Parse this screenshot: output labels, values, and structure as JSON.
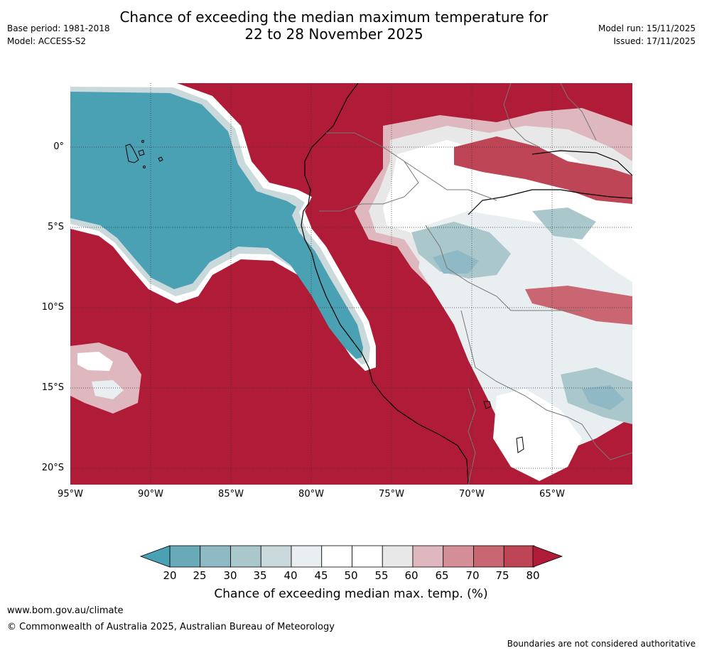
{
  "title": {
    "line1": "Chance of exceeding the median maximum temperature for",
    "line2": "22 to 28 November 2025"
  },
  "meta": {
    "base_period": "Base period: 1981-2018",
    "model": "Model: ACCESS-S2",
    "model_run": "Model run: 15/11/2025",
    "issued": "Issued: 17/11/2025"
  },
  "map": {
    "lat_labels": [
      "0°",
      "5°S",
      "10°S",
      "15°S",
      "20°S"
    ],
    "lon_labels": [
      "95°W",
      "90°W",
      "85°W",
      "80°W",
      "75°W",
      "70°W",
      "65°W"
    ]
  },
  "colorbar": {
    "ticks": [
      "20",
      "25",
      "30",
      "35",
      "40",
      "45",
      "50",
      "55",
      "60",
      "65",
      "70",
      "75",
      "80"
    ],
    "colors": [
      "#4aa1b3",
      "#6aa9b7",
      "#8fb9c5",
      "#aac7cc",
      "#cad9db",
      "#e9eff1",
      "#ffffff",
      "#ffffff",
      "#e8e8e8",
      "#dfb8bf",
      "#d48e95",
      "#c96671",
      "#be4556",
      "#b01c37"
    ],
    "title": "Chance of exceeding median max. temp. (%)"
  },
  "footer": {
    "website": "www.bom.gov.au/climate",
    "copyright": "© Commonwealth of Australia 2025, Australian Bureau of Meteorology",
    "disclaimer": "Boundaries are not considered authoritative"
  }
}
